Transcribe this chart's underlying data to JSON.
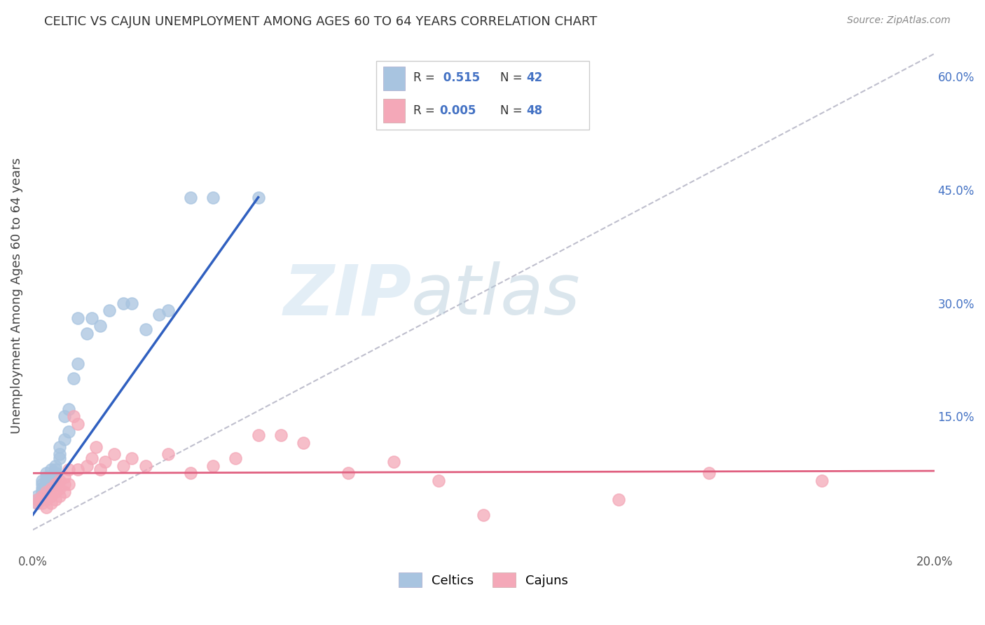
{
  "title": "CELTIC VS CAJUN UNEMPLOYMENT AMONG AGES 60 TO 64 YEARS CORRELATION CHART",
  "source": "Source: ZipAtlas.com",
  "ylabel": "Unemployment Among Ages 60 to 64 years",
  "xlim": [
    0.0,
    0.2
  ],
  "ylim": [
    -0.03,
    0.65
  ],
  "xticks": [
    0.0,
    0.05,
    0.1,
    0.15,
    0.2
  ],
  "xticklabels": [
    "0.0%",
    "",
    "",
    "",
    "20.0%"
  ],
  "yticks_right": [
    0.0,
    0.15,
    0.3,
    0.45,
    0.6
  ],
  "yticklabels_right": [
    "",
    "15.0%",
    "30.0%",
    "45.0%",
    "60.0%"
  ],
  "legend_label1": "Celtics",
  "legend_label2": "Cajuns",
  "celtic_color": "#a8c4e0",
  "cajun_color": "#f4a8b8",
  "celtic_line_color": "#3060c0",
  "cajun_line_color": "#e06080",
  "ref_line_color": "#b8b8c8",
  "watermark_zip": "ZIP",
  "watermark_atlas": "atlas",
  "background_color": "#ffffff",
  "grid_color": "#d8d8d8",
  "celtic_x": [
    0.001,
    0.001,
    0.001,
    0.002,
    0.002,
    0.002,
    0.002,
    0.003,
    0.003,
    0.003,
    0.003,
    0.003,
    0.004,
    0.004,
    0.004,
    0.004,
    0.005,
    0.005,
    0.005,
    0.005,
    0.006,
    0.006,
    0.006,
    0.007,
    0.007,
    0.008,
    0.008,
    0.009,
    0.01,
    0.01,
    0.012,
    0.013,
    0.015,
    0.017,
    0.02,
    0.022,
    0.025,
    0.028,
    0.03,
    0.035,
    0.04,
    0.05
  ],
  "celtic_y": [
    0.035,
    0.04,
    0.045,
    0.05,
    0.055,
    0.06,
    0.065,
    0.055,
    0.06,
    0.065,
    0.07,
    0.075,
    0.06,
    0.065,
    0.07,
    0.08,
    0.07,
    0.075,
    0.08,
    0.085,
    0.095,
    0.1,
    0.11,
    0.12,
    0.15,
    0.13,
    0.16,
    0.2,
    0.22,
    0.28,
    0.26,
    0.28,
    0.27,
    0.29,
    0.3,
    0.3,
    0.265,
    0.285,
    0.29,
    0.44,
    0.44,
    0.44
  ],
  "cajun_x": [
    0.001,
    0.001,
    0.002,
    0.002,
    0.002,
    0.003,
    0.003,
    0.003,
    0.004,
    0.004,
    0.004,
    0.005,
    0.005,
    0.005,
    0.006,
    0.006,
    0.006,
    0.007,
    0.007,
    0.007,
    0.008,
    0.008,
    0.009,
    0.01,
    0.01,
    0.012,
    0.013,
    0.014,
    0.015,
    0.016,
    0.018,
    0.02,
    0.022,
    0.025,
    0.03,
    0.035,
    0.04,
    0.045,
    0.05,
    0.055,
    0.06,
    0.07,
    0.08,
    0.09,
    0.1,
    0.13,
    0.15,
    0.175
  ],
  "cajun_y": [
    0.035,
    0.04,
    0.035,
    0.04,
    0.045,
    0.03,
    0.04,
    0.05,
    0.035,
    0.045,
    0.055,
    0.04,
    0.05,
    0.06,
    0.045,
    0.055,
    0.065,
    0.05,
    0.06,
    0.07,
    0.06,
    0.08,
    0.15,
    0.14,
    0.08,
    0.085,
    0.095,
    0.11,
    0.08,
    0.09,
    0.1,
    0.085,
    0.095,
    0.085,
    0.1,
    0.075,
    0.085,
    0.095,
    0.125,
    0.125,
    0.115,
    0.075,
    0.09,
    0.065,
    0.02,
    0.04,
    0.075,
    0.065
  ],
  "celtic_line_x0": 0.0,
  "celtic_line_x1": 0.05,
  "celtic_line_y0": 0.02,
  "celtic_line_y1": 0.44,
  "cajun_line_x0": 0.0,
  "cajun_line_x1": 0.2,
  "cajun_line_y0": 0.075,
  "cajun_line_y1": 0.078,
  "ref_line_x0": 0.0,
  "ref_line_x1": 0.2,
  "ref_line_y0": 0.0,
  "ref_line_y1": 0.63
}
